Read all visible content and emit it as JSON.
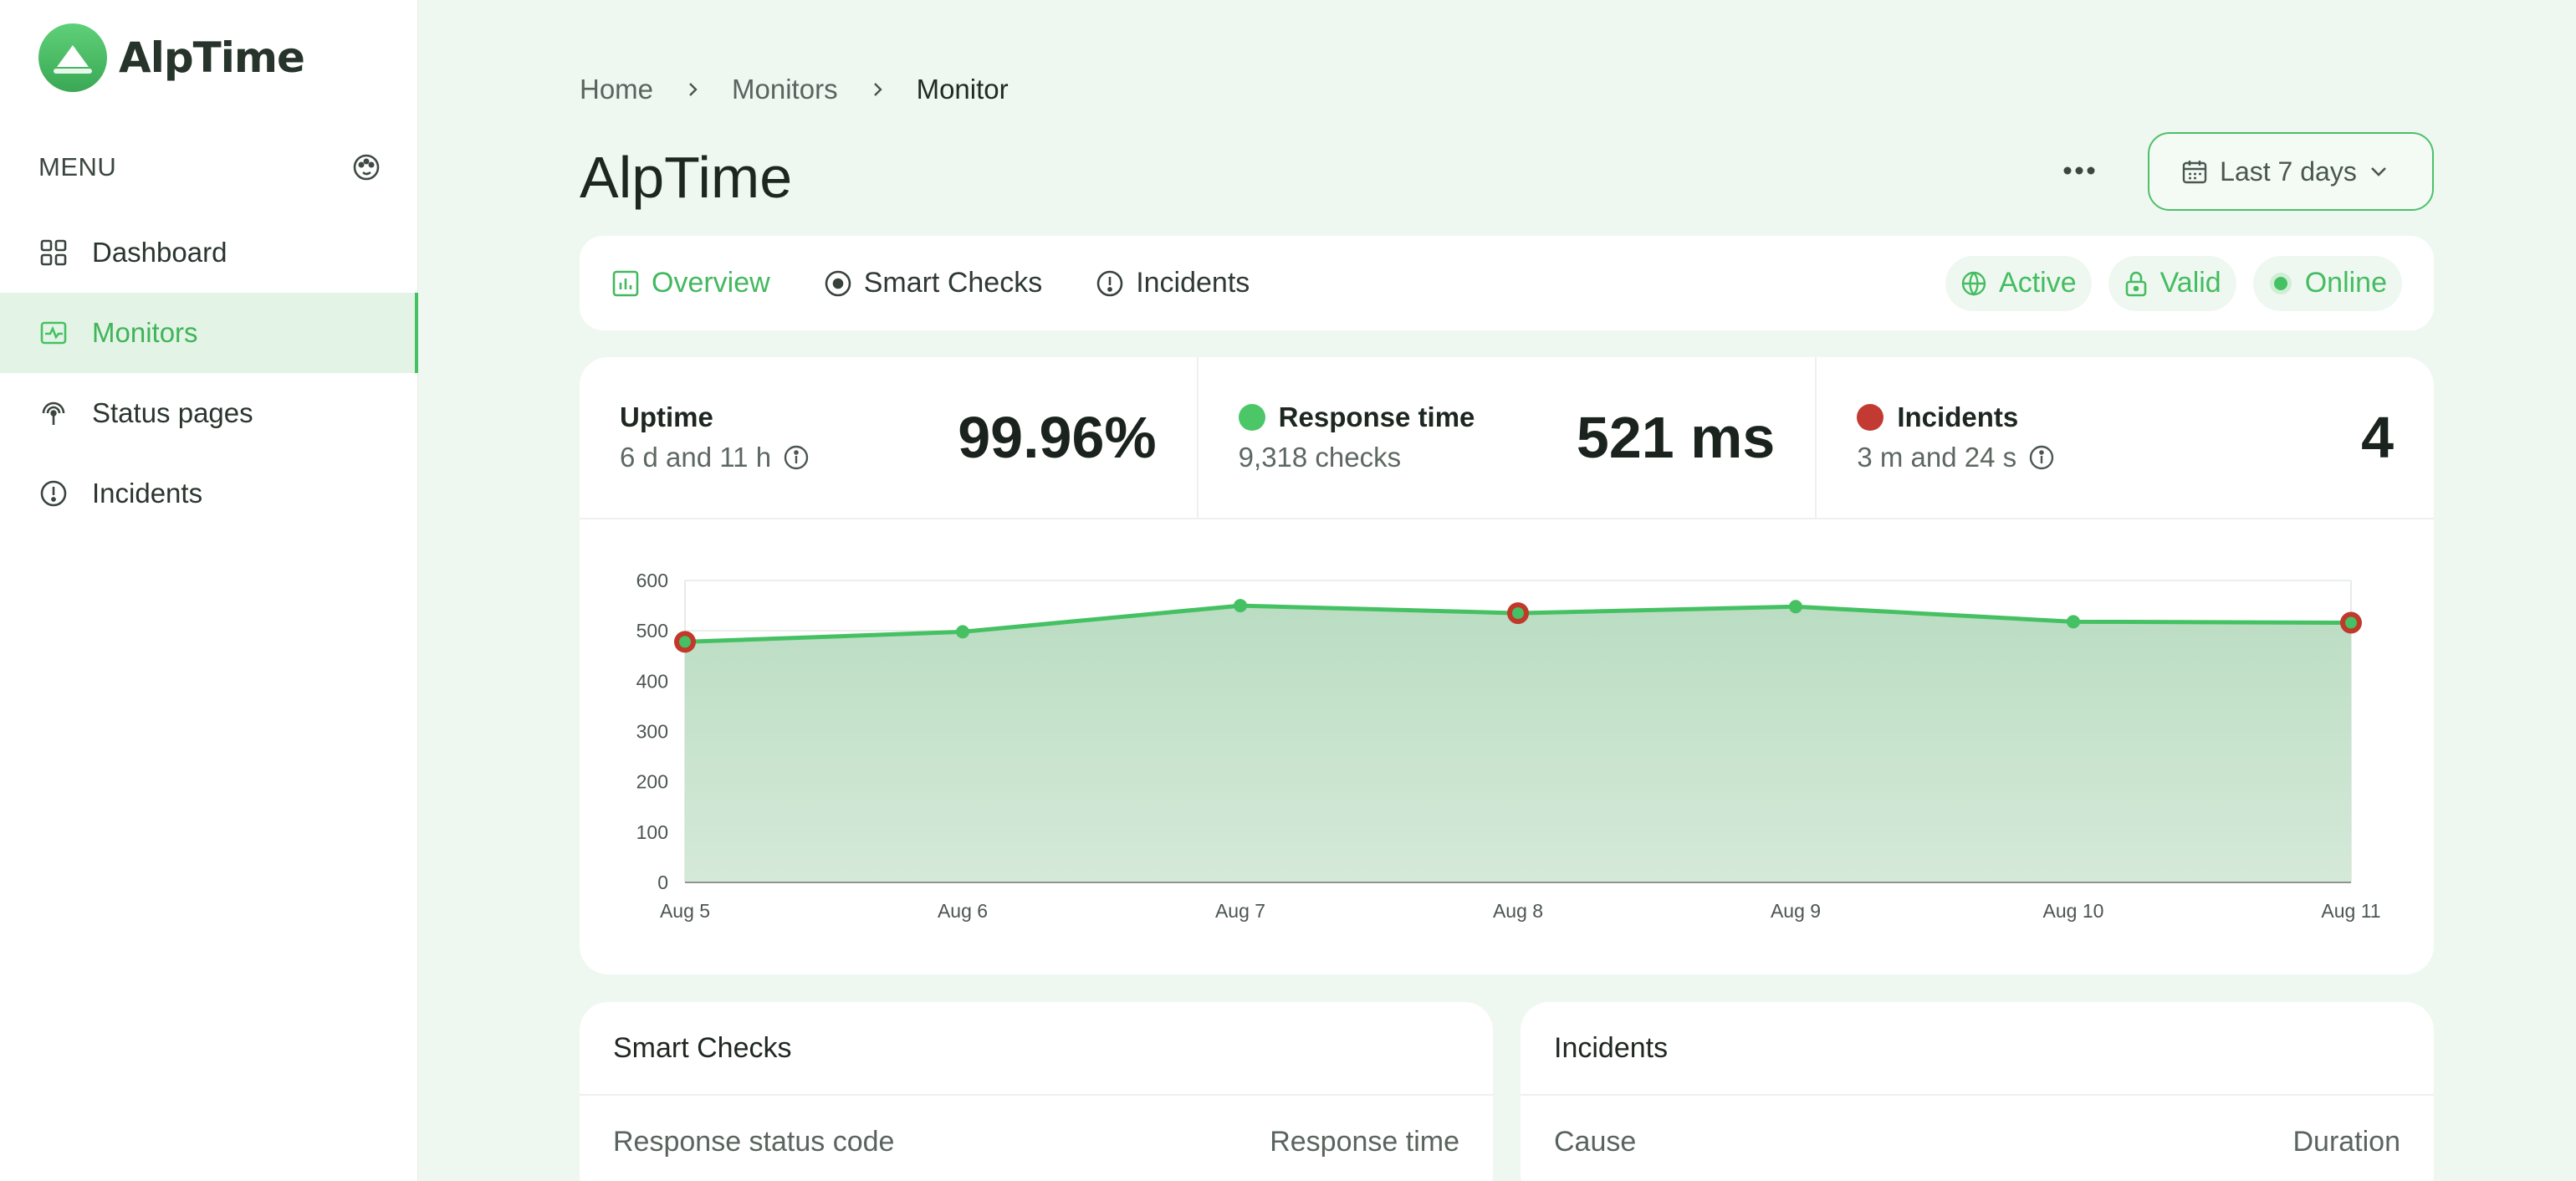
{
  "app": {
    "name": "AlpTime"
  },
  "sidebar": {
    "menu_title": "MENU",
    "items": [
      {
        "label": "Dashboard",
        "icon": "grid-icon",
        "active": false
      },
      {
        "label": "Monitors",
        "icon": "activity-icon",
        "active": true
      },
      {
        "label": "Status pages",
        "icon": "broadcast-icon",
        "active": false
      },
      {
        "label": "Incidents",
        "icon": "alert-circle-icon",
        "active": false
      }
    ]
  },
  "breadcrumb": [
    "Home",
    "Monitors",
    "Monitor"
  ],
  "page": {
    "title": "AlpTime",
    "date_range": "Last 7 days"
  },
  "tabs": [
    {
      "label": "Overview",
      "icon": "bar-chart-icon",
      "active": true
    },
    {
      "label": "Smart Checks",
      "icon": "target-icon",
      "active": false
    },
    {
      "label": "Incidents",
      "icon": "alert-circle-icon",
      "active": false
    }
  ],
  "badges": [
    {
      "label": "Active",
      "icon": "globe-icon"
    },
    {
      "label": "Valid",
      "icon": "lock-icon"
    },
    {
      "label": "Online",
      "icon": "dot-icon"
    }
  ],
  "stats": {
    "uptime": {
      "label": "Uptime",
      "sub": "6 d and 11 h",
      "value": "99.96%"
    },
    "response": {
      "label": "Response time",
      "sub": "9,318 checks",
      "value": "521 ms"
    },
    "incidents": {
      "label": "Incidents",
      "sub": "3 m and 24 s",
      "value": "4"
    }
  },
  "colors": {
    "accent": "#45c163",
    "incident": "#c0392b",
    "area_top": "#b7dbbf",
    "area_bottom": "#d3e8d7"
  },
  "chart_data": {
    "type": "area",
    "x": [
      "Aug 5",
      "Aug 6",
      "Aug 7",
      "Aug 8",
      "Aug 9",
      "Aug 10",
      "Aug 11"
    ],
    "series": [
      {
        "values": [
          478,
          498,
          550,
          535,
          548,
          518,
          516
        ]
      }
    ],
    "incident_points": [
      "Aug 5",
      "Aug 8",
      "Aug 11"
    ],
    "ylim": [
      0,
      600
    ],
    "yticks": [
      0,
      100,
      200,
      300,
      400,
      500,
      600
    ],
    "grid": true
  },
  "smart_checks": {
    "title": "Smart Checks",
    "columns": [
      "Response status code",
      "Response time"
    ]
  },
  "incidents_panel": {
    "title": "Incidents",
    "columns": [
      "Cause",
      "Duration"
    ]
  }
}
